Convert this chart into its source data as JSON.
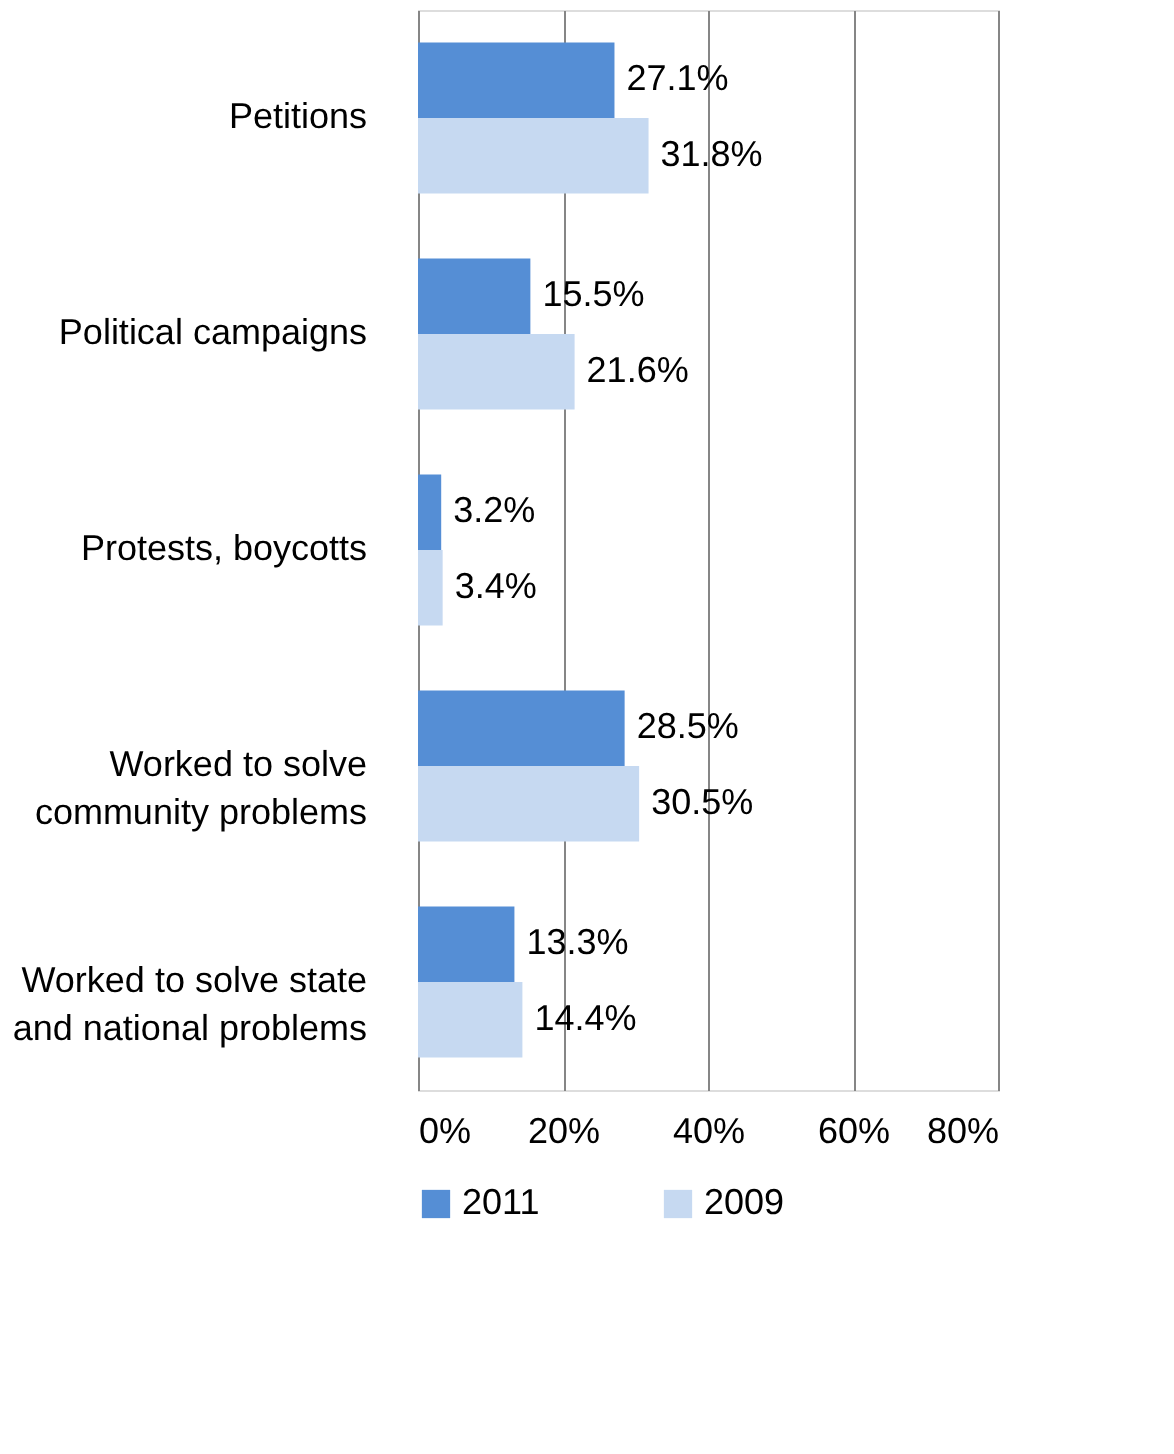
{
  "chart_data": {
    "type": "bar",
    "orientation": "horizontal",
    "categories": [
      "Petitions",
      "Political campaigns",
      "Protests, boycotts",
      "Worked to solve community problems",
      "Worked to solve state and national problems"
    ],
    "series": [
      {
        "name": "2011",
        "color": "#558ed5",
        "values": [
          27.1,
          15.5,
          3.2,
          28.5,
          13.3
        ],
        "value_labels": [
          "27.1%",
          "15.5%",
          "3.2%",
          "28.5%",
          "13.3%"
        ]
      },
      {
        "name": "2009",
        "color": "#c6d9f1",
        "values": [
          31.8,
          21.6,
          3.4,
          30.5,
          14.4
        ],
        "value_labels": [
          "31.8%",
          "21.6%",
          "3.4%",
          "30.5%",
          "14.4%"
        ]
      }
    ],
    "xlim": [
      0,
      80
    ],
    "xticks": [
      {
        "value": 0,
        "label": "0%"
      },
      {
        "value": 20,
        "label": "20%"
      },
      {
        "value": 40,
        "label": "40%"
      },
      {
        "value": 60,
        "label": "60%"
      },
      {
        "value": 80,
        "label": "80%"
      }
    ],
    "grid": "x",
    "legend": "bottom"
  }
}
